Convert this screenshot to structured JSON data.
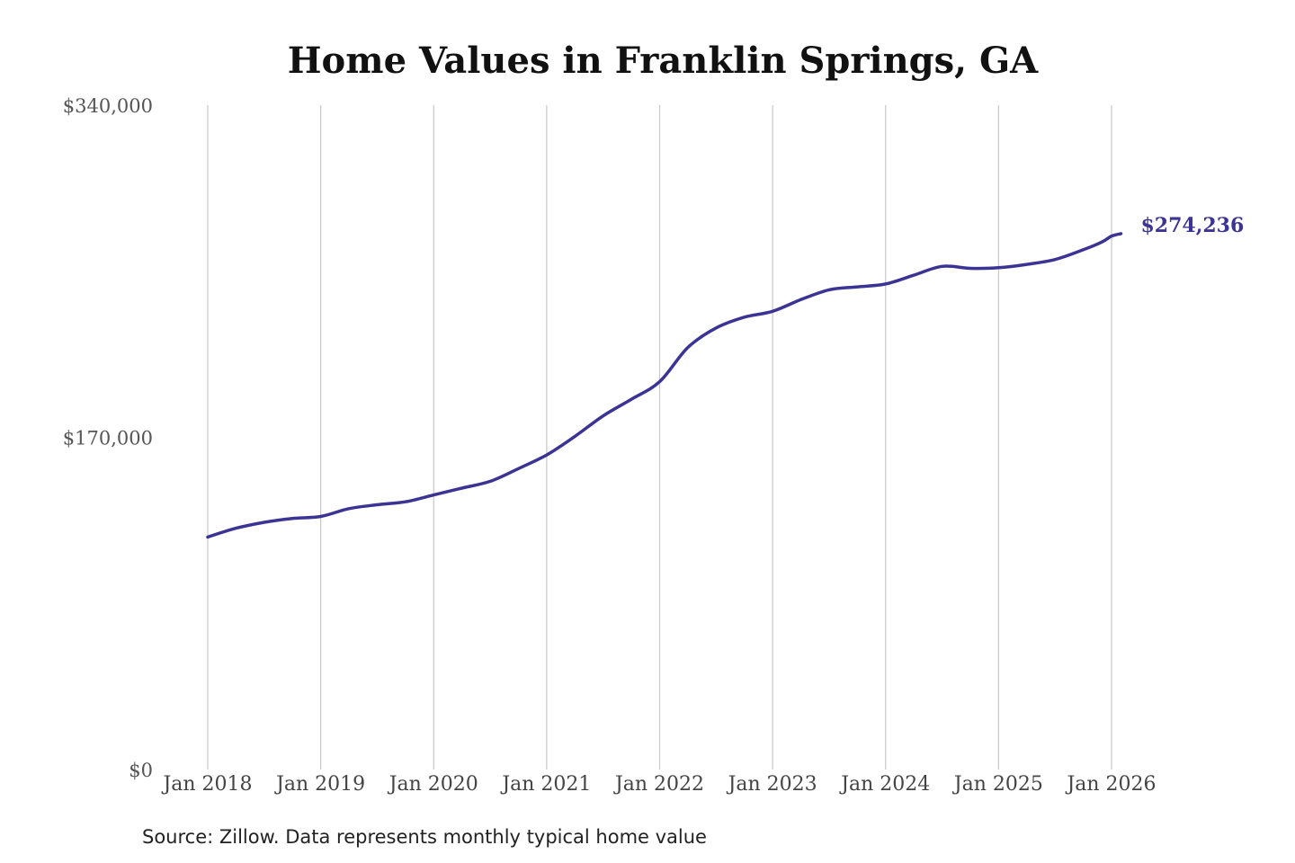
{
  "chart_data": {
    "type": "line",
    "title": "Home Values in Franklin Springs, GA",
    "subtitle": "",
    "xlabel": "",
    "ylabel": "",
    "source_note": "Source: Zillow. Data represents monthly typical home value",
    "ylim": [
      0,
      340000
    ],
    "y_ticks": [
      {
        "value": 0,
        "label": "$0"
      },
      {
        "value": 170000,
        "label": "$170,000"
      },
      {
        "value": 340000,
        "label": "$340,000"
      }
    ],
    "x_ticks": [
      {
        "value": "2018-01",
        "label": "Jan 2018"
      },
      {
        "value": "2019-01",
        "label": "Jan 2019"
      },
      {
        "value": "2020-01",
        "label": "Jan 2020"
      },
      {
        "value": "2021-01",
        "label": "Jan 2021"
      },
      {
        "value": "2022-01",
        "label": "Jan 2022"
      },
      {
        "value": "2023-01",
        "label": "Jan 2023"
      },
      {
        "value": "2024-01",
        "label": "Jan 2024"
      },
      {
        "value": "2025-01",
        "label": "Jan 2025"
      },
      {
        "value": "2026-01",
        "label": "Jan 2026"
      }
    ],
    "xlim": [
      "2018-01",
      "2026-02"
    ],
    "grid": {
      "vertical": true,
      "horizontal": false
    },
    "legend": "none",
    "series": [
      {
        "color": "#3b3494",
        "end_label": "$274,236",
        "x": [
          "2018-01",
          "2018-04",
          "2018-07",
          "2018-10",
          "2019-01",
          "2019-04",
          "2019-07",
          "2019-10",
          "2020-01",
          "2020-04",
          "2020-07",
          "2020-10",
          "2021-01",
          "2021-04",
          "2021-07",
          "2021-10",
          "2022-01",
          "2022-04",
          "2022-07",
          "2022-10",
          "2023-01",
          "2023-04",
          "2023-07",
          "2023-10",
          "2024-01",
          "2024-04",
          "2024-07",
          "2024-10",
          "2025-01",
          "2025-04",
          "2025-07",
          "2025-10",
          "2025-12",
          "2026-01",
          "2026-02"
        ],
        "y": [
          119000,
          123500,
          126500,
          128500,
          129500,
          133500,
          135500,
          137000,
          140500,
          144000,
          147500,
          154000,
          161000,
          170500,
          181000,
          189500,
          198500,
          216000,
          226000,
          231500,
          234500,
          240500,
          245500,
          247000,
          248500,
          253000,
          257500,
          256500,
          256800,
          258500,
          261000,
          266000,
          270000,
          273000,
          274236
        ]
      }
    ]
  }
}
